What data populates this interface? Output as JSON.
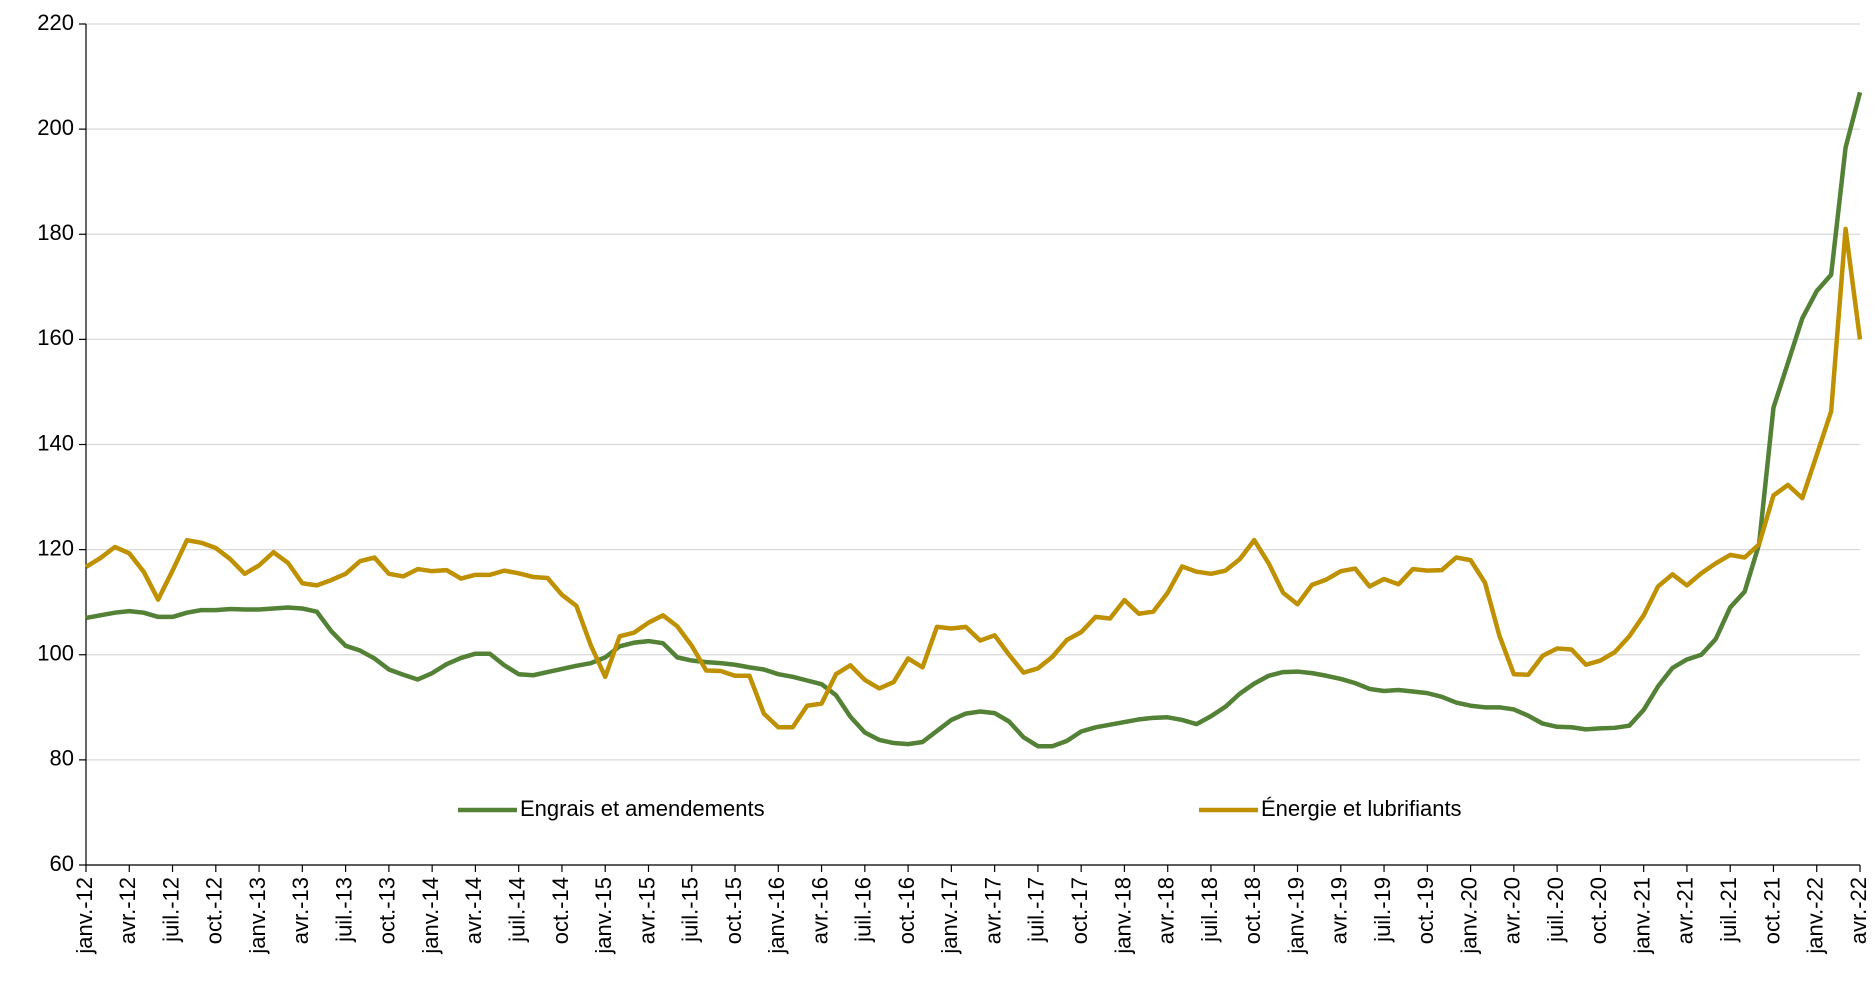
{
  "chart_data": {
    "type": "line",
    "categories": [
      "janv.-12",
      null,
      null,
      "avr.-12",
      null,
      null,
      "juil.-12",
      null,
      null,
      "oct.-12",
      null,
      null,
      "janv.-13",
      null,
      null,
      "avr.-13",
      null,
      null,
      "juil.-13",
      null,
      null,
      "oct.-13",
      null,
      null,
      "janv.-14",
      null,
      null,
      "avr.-14",
      null,
      null,
      "juil.-14",
      null,
      null,
      "oct.-14",
      null,
      null,
      "janv.-15",
      null,
      null,
      "avr.-15",
      null,
      null,
      "juil.-15",
      null,
      null,
      "oct.-15",
      null,
      null,
      "janv.-16",
      null,
      null,
      "avr.-16",
      null,
      null,
      "juil.-16",
      null,
      null,
      "oct.-16",
      null,
      null,
      "janv.-17",
      null,
      null,
      "avr.-17",
      null,
      null,
      "juil.-17",
      null,
      null,
      "oct.-17",
      null,
      null,
      "janv.-18",
      null,
      null,
      "avr.-18",
      null,
      null,
      "juil.-18",
      null,
      null,
      "oct.-18",
      null,
      null,
      "janv.-19",
      null,
      null,
      "avr.-19",
      null,
      null,
      "juil.-19",
      null,
      null,
      "oct.-19",
      null,
      null,
      "janv.-20",
      null,
      null,
      "avr.-20",
      null,
      null,
      "juil.-20",
      null,
      null,
      "oct.-20",
      null,
      null,
      "janv.-21",
      null,
      null,
      "avr.-21",
      null,
      null,
      "juil.-21",
      null,
      null,
      "oct.-21",
      null,
      null,
      "janv.-22",
      null,
      null,
      "avr.-22"
    ],
    "series": [
      {
        "name": "Engrais et amendements",
        "color": "#538135",
        "values": [
          107,
          107.5,
          108,
          108.3,
          108,
          107.2,
          107.2,
          108,
          108.5,
          108.5,
          108.7,
          108.6,
          108.6,
          108.8,
          109,
          108.8,
          108.2,
          104.5,
          101.7,
          100.8,
          99.3,
          97.2,
          96.2,
          95.3,
          96.5,
          98.2,
          99.4,
          100.2,
          100.2,
          98,
          96.3,
          96.1,
          96.7,
          97.3,
          97.9,
          98.4,
          99.5,
          101.6,
          102.3,
          102.6,
          102.2,
          99.5,
          98.9,
          98.6,
          98.4,
          98.1,
          97.6,
          97.2,
          96.3,
          95.8,
          95.1,
          94.4,
          92.3,
          88.2,
          85.2,
          83.8,
          83.2,
          83,
          83.4,
          85.5,
          87.6,
          88.8,
          89.2,
          88.9,
          87.3,
          84.3,
          82.6,
          82.6,
          83.6,
          85.4,
          86.2,
          86.7,
          87.2,
          87.7,
          88,
          88.1,
          87.6,
          86.8,
          88.3,
          90.1,
          92.6,
          94.5,
          96,
          96.7,
          96.8,
          96.5,
          96,
          95.4,
          94.6,
          93.5,
          93.1,
          93.3,
          93,
          92.7,
          92,
          90.9,
          90.3,
          90,
          90,
          89.6,
          88.4,
          86.9,
          86.3,
          86.2,
          85.8,
          86,
          86.1,
          86.5,
          89.5,
          94,
          97.5,
          99.1,
          100,
          103,
          109,
          112,
          121,
          147,
          155.5,
          164,
          169.2,
          172.3,
          196.5,
          207
        ]
      },
      {
        "name": "Énergie et lubrifiants",
        "color": "#bf9000",
        "values": [
          116.7,
          118.4,
          120.5,
          119.3,
          115.8,
          110.5,
          116,
          121.8,
          121.3,
          120.3,
          118.2,
          115.4,
          117,
          119.5,
          117.5,
          113.6,
          113.2,
          114.2,
          115.4,
          117.8,
          118.5,
          115.4,
          114.9,
          116.3,
          115.9,
          116.1,
          114.5,
          115.2,
          115.2,
          116,
          115.5,
          114.8,
          114.6,
          111.4,
          109.3,
          101.8,
          95.8,
          103.5,
          104.2,
          106.1,
          107.5,
          105.4,
          101.7,
          97,
          96.9,
          96,
          96,
          88.8,
          86.2,
          86.2,
          90.3,
          90.7,
          96.3,
          98,
          95.2,
          93.6,
          94.8,
          99.3,
          97.6,
          105.3,
          105,
          105.3,
          102.7,
          103.7,
          100,
          96.6,
          97.4,
          99.6,
          102.8,
          104.3,
          107.2,
          106.9,
          110.4,
          107.8,
          108.2,
          111.8,
          116.8,
          115.8,
          115.4,
          116,
          118.2,
          121.8,
          117.4,
          111.8,
          109.6,
          113.3,
          114.3,
          115.9,
          116.4,
          113,
          114.4,
          113.4,
          116.3,
          116,
          116.1,
          118.5,
          118,
          113.7,
          103.6,
          96.3,
          96.2,
          99.8,
          101.2,
          101,
          98.1,
          98.9,
          100.5,
          103.5,
          107.5,
          113,
          115.3,
          113.2,
          115.5,
          117.4,
          119,
          118.5,
          121,
          130.3,
          132.3,
          129.8,
          138,
          146.3,
          181,
          160
        ]
      }
    ],
    "ylim": [
      60,
      220
    ],
    "yticks": [
      60,
      80,
      100,
      120,
      140,
      160,
      180,
      200,
      220
    ],
    "grid": true,
    "legend": "bottom"
  }
}
